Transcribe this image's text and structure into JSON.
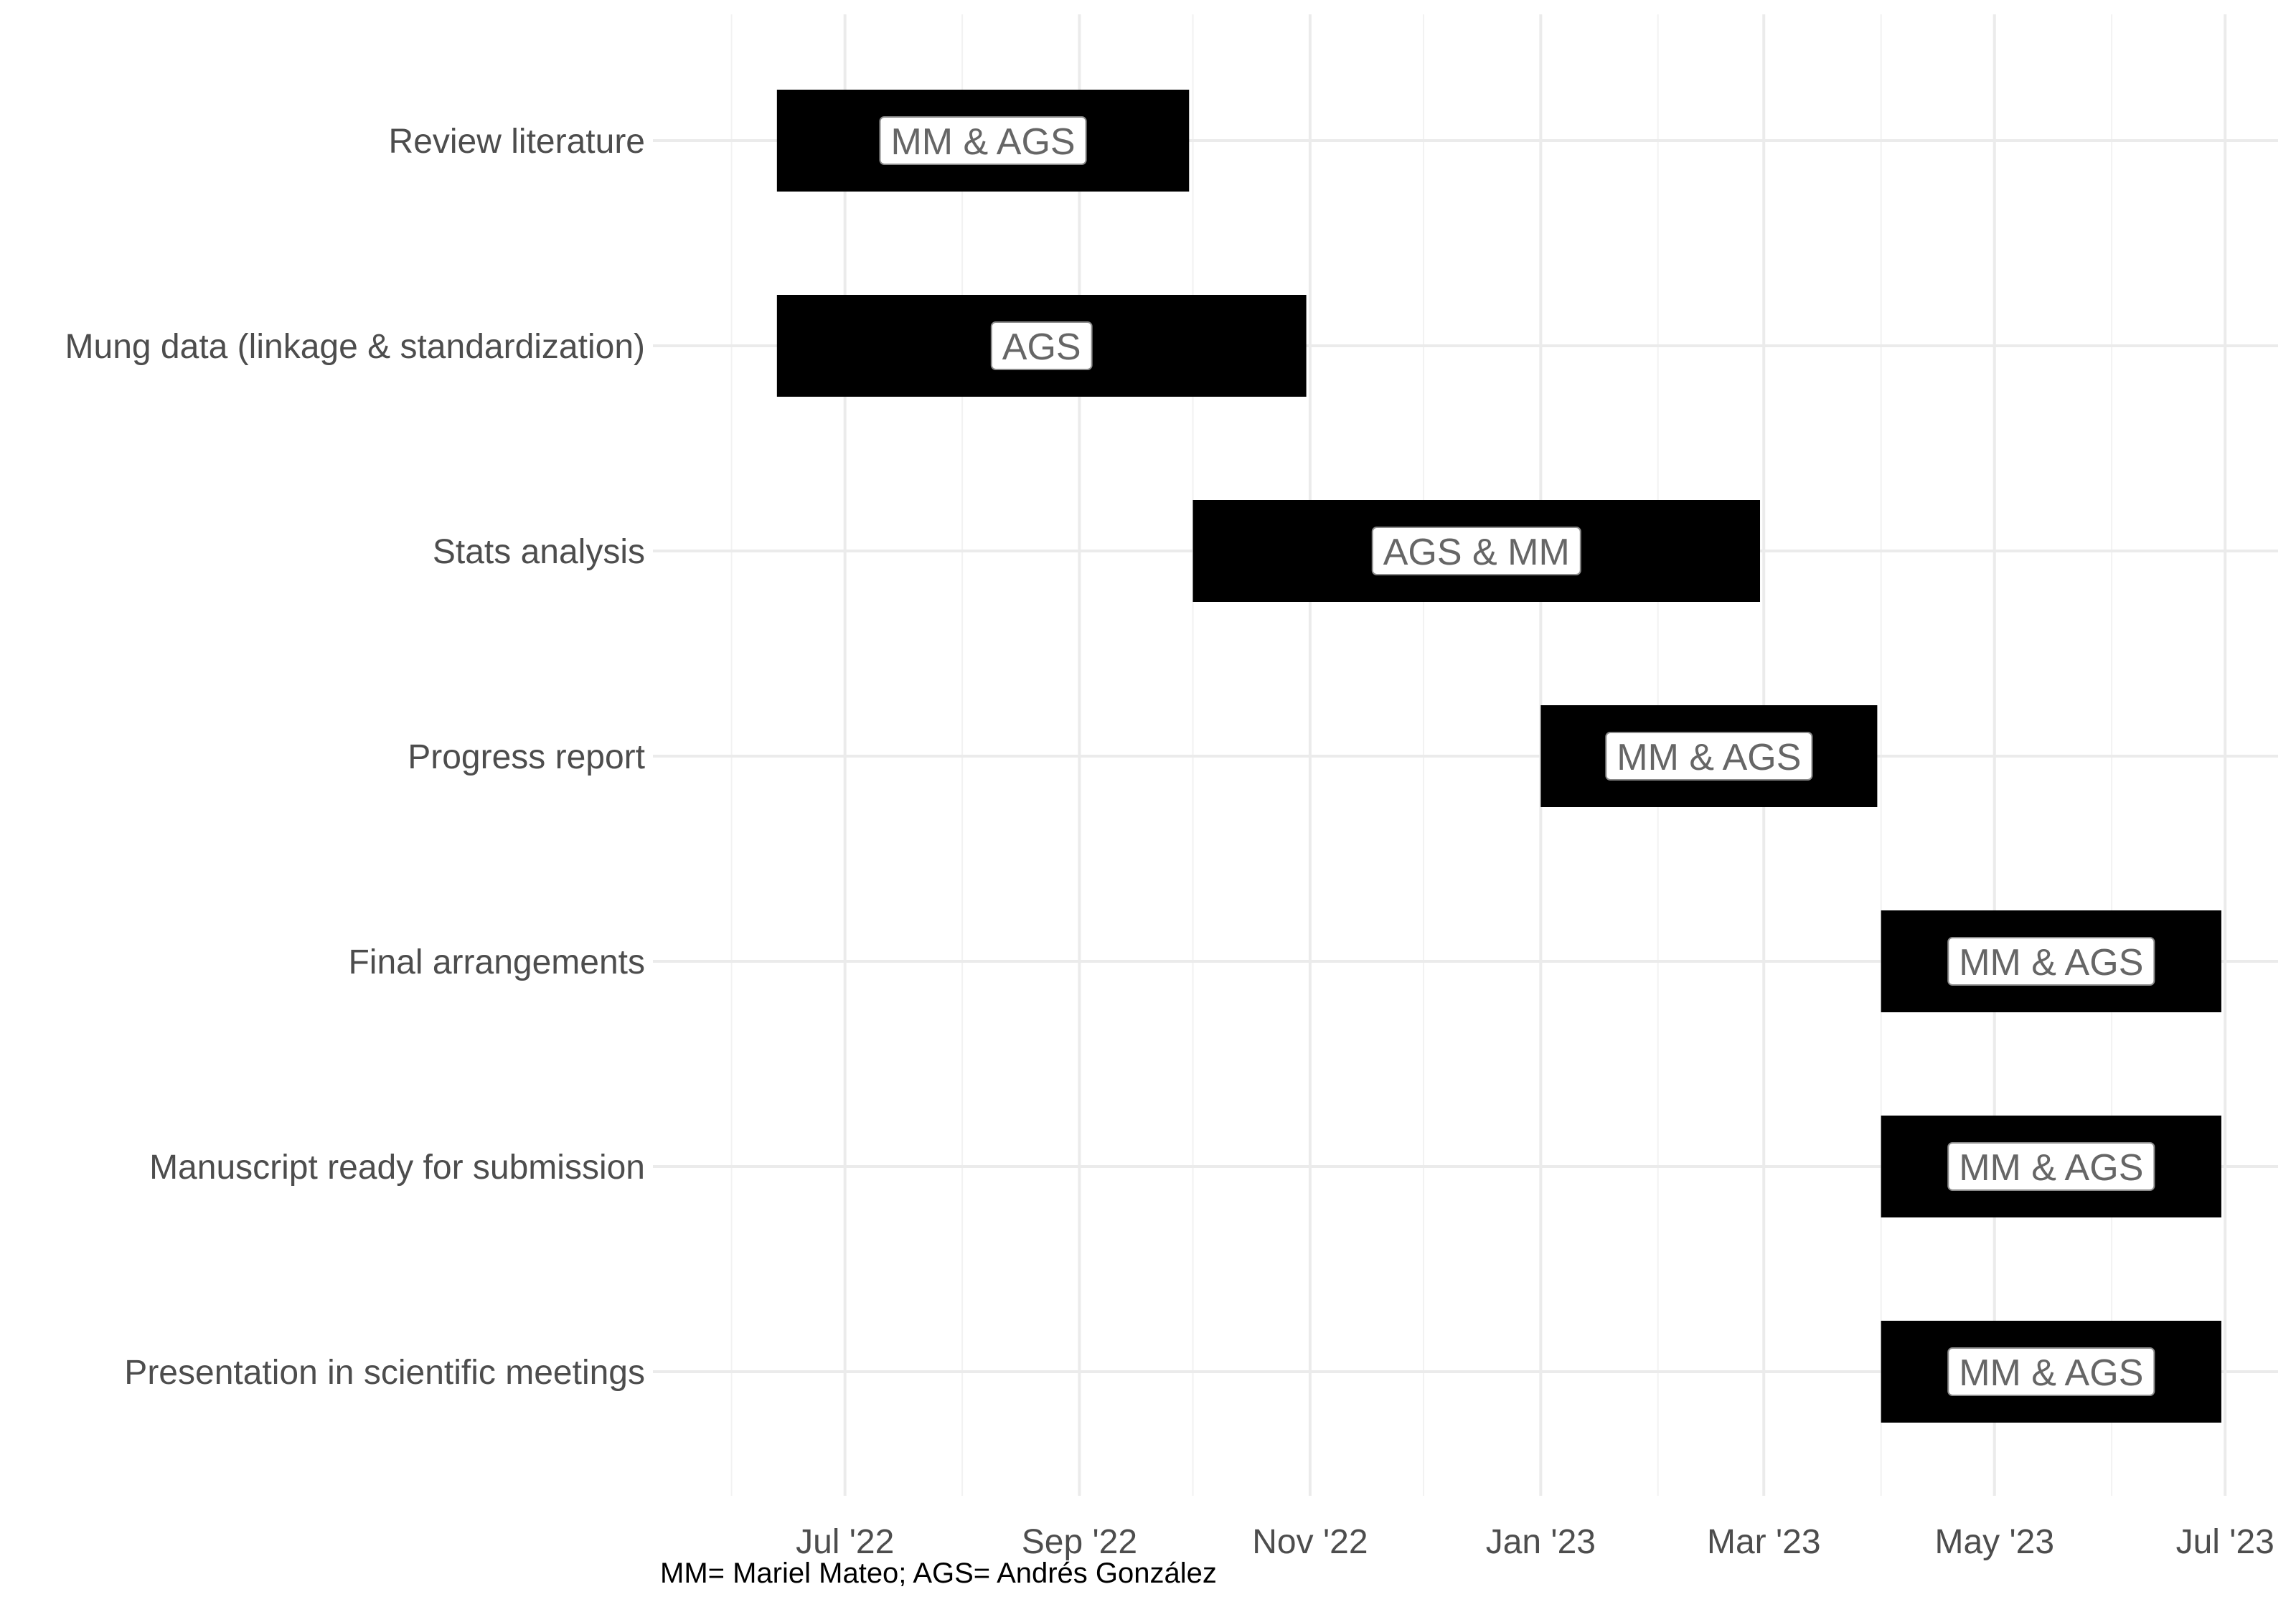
{
  "chart_data": {
    "type": "gantt",
    "caption": "MM= Mariel Mateo; AGS= Andrés González",
    "x_axis": {
      "type": "date",
      "range": [
        "2022-05-15",
        "2023-07-15"
      ],
      "ticks": [
        {
          "date": "2022-07-01",
          "label": "Jul '22"
        },
        {
          "date": "2022-09-01",
          "label": "Sep '22"
        },
        {
          "date": "2022-11-01",
          "label": "Nov '22"
        },
        {
          "date": "2023-01-01",
          "label": "Jan '23"
        },
        {
          "date": "2023-03-01",
          "label": "Mar '23"
        },
        {
          "date": "2023-05-01",
          "label": "May '23"
        },
        {
          "date": "2023-07-01",
          "label": "Jul '23"
        }
      ],
      "minor_grid": [
        "2022-06-01",
        "2022-08-01",
        "2022-10-01",
        "2022-12-01",
        "2023-02-01",
        "2023-04-01",
        "2023-06-01"
      ]
    },
    "grid": true,
    "bar_color": "#000000",
    "tasks": [
      {
        "task": "Review literature",
        "start": "2022-06-13",
        "end": "2022-09-30",
        "label": "MM & AGS"
      },
      {
        "task": "Mung data (linkage & standardization)",
        "start": "2022-06-13",
        "end": "2022-10-31",
        "label": "AGS"
      },
      {
        "task": "Stats analysis",
        "start": "2022-10-01",
        "end": "2023-02-28",
        "label": "AGS & MM"
      },
      {
        "task": "Progress report",
        "start": "2023-01-01",
        "end": "2023-03-31",
        "label": "MM & AGS"
      },
      {
        "task": "Final arrangements",
        "start": "2023-04-01",
        "end": "2023-06-30",
        "label": "MM & AGS"
      },
      {
        "task": "Manuscript ready for submission",
        "start": "2023-04-01",
        "end": "2023-06-30",
        "label": "MM & AGS"
      },
      {
        "task": "Presentation in scientific meetings",
        "start": "2023-04-01",
        "end": "2023-06-30",
        "label": "MM & AGS"
      }
    ]
  }
}
